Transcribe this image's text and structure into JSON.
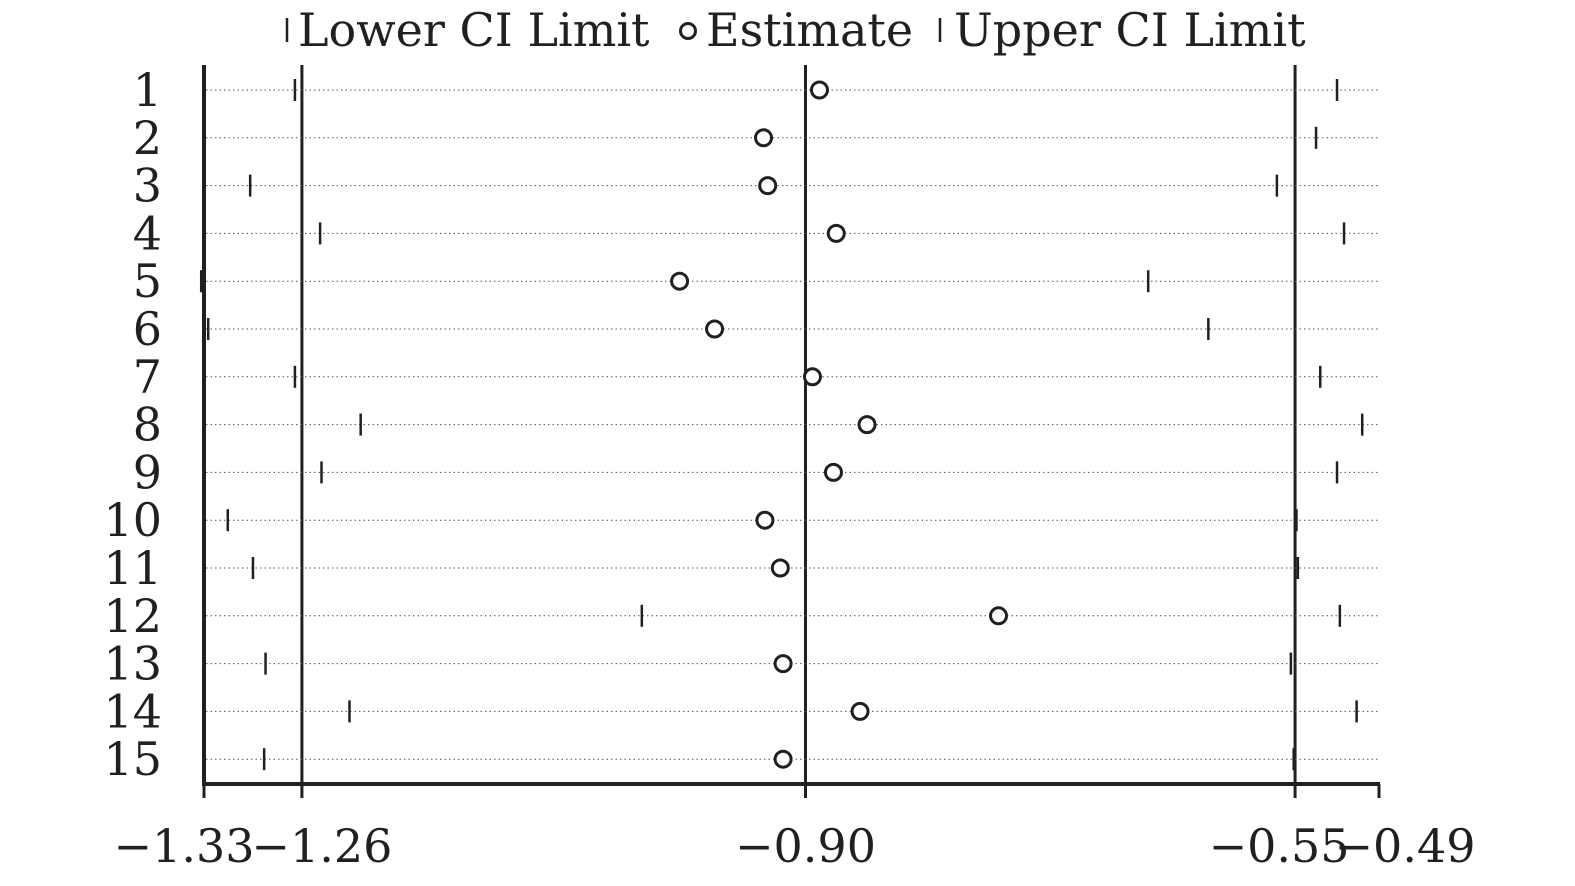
{
  "chart_data": {
    "type": "scatter",
    "subtype": "forest-plot",
    "title": "",
    "xlabel": "",
    "ylabel": "",
    "legend": {
      "placement": "top",
      "entries": [
        {
          "key": "lower",
          "label": "Lower CI Limit",
          "marker": "tick"
        },
        {
          "key": "estimate",
          "label": "Estimate",
          "marker": "circle"
        },
        {
          "key": "upper",
          "label": "Upper CI Limit",
          "marker": "tick"
        }
      ]
    },
    "xlim": [
      -1.33,
      -0.49
    ],
    "x_ticks": [
      {
        "value": -1.33,
        "label": "−1.33"
      },
      {
        "value": -1.26,
        "label": "−1.26"
      },
      {
        "value": -0.9,
        "label": "−0.90"
      },
      {
        "value": -0.55,
        "label": "−0.55"
      },
      {
        "value": -0.49,
        "label": "−0.49"
      }
    ],
    "reference_lines": [
      -1.26,
      -0.9,
      -0.55
    ],
    "grid": false,
    "rows": [
      {
        "label": "1",
        "lower": -1.265,
        "estimate": -0.89,
        "upper": -0.52
      },
      {
        "label": "2",
        "lower": -1.33,
        "estimate": -0.93,
        "upper": -0.535
      },
      {
        "label": "3",
        "lower": -1.297,
        "estimate": -0.927,
        "upper": -0.563
      },
      {
        "label": "4",
        "lower": -1.247,
        "estimate": -0.878,
        "upper": -0.515
      },
      {
        "label": "5",
        "lower": -1.332,
        "estimate": -0.99,
        "upper": -0.655
      },
      {
        "label": "6",
        "lower": -1.327,
        "estimate": -0.965,
        "upper": -0.612
      },
      {
        "label": "7",
        "lower": -1.265,
        "estimate": -0.895,
        "upper": -0.532
      },
      {
        "label": "8",
        "lower": -1.218,
        "estimate": -0.856,
        "upper": -0.502
      },
      {
        "label": "9",
        "lower": -1.246,
        "estimate": -0.88,
        "upper": -0.52
      },
      {
        "label": "10",
        "lower": -1.313,
        "estimate": -0.929,
        "upper": -0.549
      },
      {
        "label": "11",
        "lower": -1.295,
        "estimate": -0.918,
        "upper": -0.548
      },
      {
        "label": "12",
        "lower": -1.017,
        "estimate": -0.762,
        "upper": -0.518
      },
      {
        "label": "13",
        "lower": -1.286,
        "estimate": -0.916,
        "upper": -0.553
      },
      {
        "label": "14",
        "lower": -1.226,
        "estimate": -0.861,
        "upper": -0.506
      },
      {
        "label": "15",
        "lower": -1.287,
        "estimate": -0.916,
        "upper": -0.551
      }
    ]
  }
}
